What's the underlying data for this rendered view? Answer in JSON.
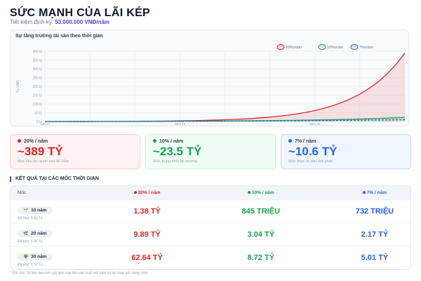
{
  "header": {
    "title": "SỨC MẠNH CỦA LÃI KÉP",
    "subtitle_label": "Tiết kiệm định kỳ:",
    "subtitle_value": "53.000.000 VNĐ/năm"
  },
  "colors": {
    "r20": "#dc2626",
    "r10": "#16a34a",
    "r7": "#2563eb"
  },
  "chart_data": {
    "type": "line",
    "title": "Sự tăng trưởng tài sản theo thời gian",
    "ylabel": "Tỷ VNĐ",
    "xlabel": "",
    "ylim": [
      0,
      400
    ],
    "yticks": [
      "0 tỷ",
      "50 tỷ",
      "100 tỷ",
      "150 tỷ",
      "200 tỷ",
      "250 tỷ",
      "300 tỷ",
      "350 tỷ",
      "400 tỷ"
    ],
    "xticks": [
      {
        "x": 0,
        "label": "Năm 0"
      },
      {
        "x": 15,
        "label": "Năm 15"
      },
      {
        "x": 30,
        "label": "Năm 30"
      }
    ],
    "x": [
      0,
      5,
      10,
      15,
      20,
      25,
      30,
      35,
      40
    ],
    "grid": true,
    "legend": "top-right",
    "series": [
      {
        "name": "20%/năm",
        "color": "#dc2626",
        "fill": true,
        "dashed": false,
        "values": [
          0,
          0.39,
          1.38,
          3.82,
          9.89,
          25.01,
          62.64,
          156.26,
          389.2
        ]
      },
      {
        "name": "10%/năm",
        "color": "#16a34a",
        "fill": true,
        "dashed": false,
        "values": [
          0,
          0.32,
          0.85,
          1.68,
          3.04,
          5.21,
          8.72,
          14.36,
          23.46
        ]
      },
      {
        "name": "7%/năm",
        "color": "#2563eb",
        "fill": false,
        "dashed": true,
        "values": [
          0,
          0.31,
          0.73,
          1.33,
          2.17,
          3.35,
          5.01,
          7.33,
          10.58
        ]
      }
    ]
  },
  "cards": [
    {
      "label": "20% / năm",
      "value": "~389 TỶ",
      "desc": "Mục tiêu lạc quan sau 40 năm"
    },
    {
      "label": "10% / năm",
      "value": "~23.5 TỶ",
      "desc": "Mức trung bình thị trường"
    },
    {
      "label": "7% / năm",
      "value": "~10.6 TỶ",
      "desc": "Mức thực tế sau lạm phát"
    }
  ],
  "section_title": "KẾT QUẢ TẠI CÁC MỐC THỜI GIAN",
  "table": {
    "headers": [
      "Mốc",
      "20% / năm",
      "10% / năm",
      "7% / năm"
    ],
    "rows": [
      {
        "icon": "seedling",
        "milestone": "10 năm",
        "paid": "Đã nộp: 0.53 Tỷ",
        "v": [
          "1.38 TỶ",
          "845 TRIỆU",
          "732 TRIỆU"
        ]
      },
      {
        "icon": "herb",
        "milestone": "20 năm",
        "paid": "Đã nộp: 1.06 Tỷ",
        "v": [
          "9.89 TỶ",
          "3.04 TỶ",
          "2.17 TỶ"
        ]
      },
      {
        "icon": "tree",
        "milestone": "30 năm",
        "paid": "Đã nộp: 1.59 Tỷ",
        "v": [
          "62.64 TỶ",
          "8.72 TỶ",
          "5.01 TỶ"
        ]
      }
    ]
  },
  "note": "* Ghi chú: Số liệu dựa trên giả định nộp tiền vào cuối mỗi năm và tái nhập gốc hàng năm."
}
